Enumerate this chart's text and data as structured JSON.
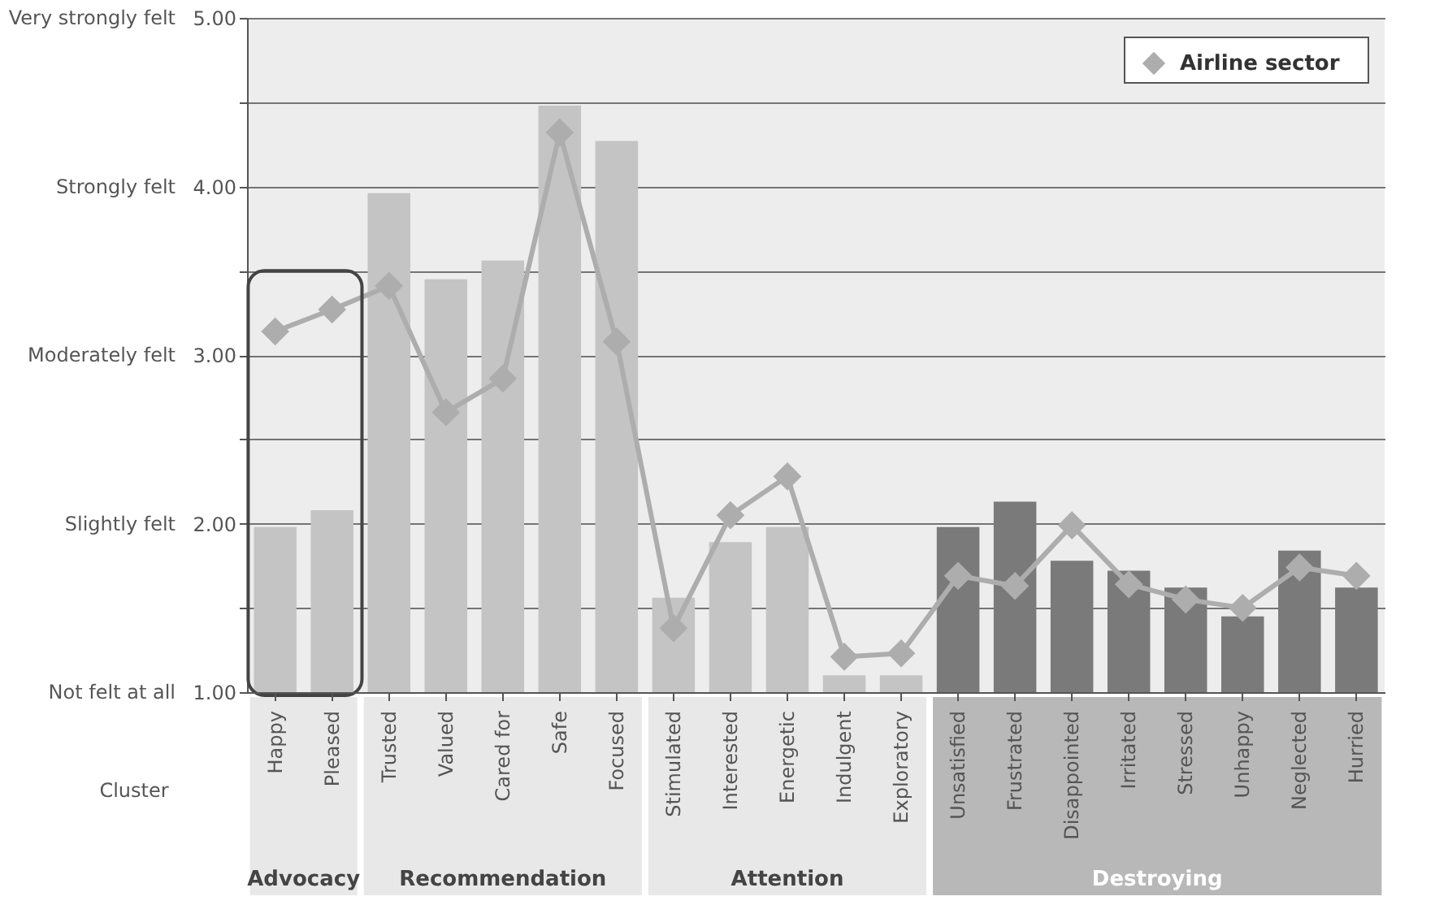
{
  "chart_data": {
    "type": "bar",
    "xlabel": "Cluster",
    "categories": [
      "Happy",
      "Pleased",
      "Trusted",
      "Valued",
      "Cared for",
      "Safe",
      "Focused",
      "Stimulated",
      "Interested",
      "Energetic",
      "Indulgent",
      "Exploratory",
      "Unsatisfied",
      "Frustrated",
      "Disappointed",
      "Irritated",
      "Stressed",
      "Unhappy",
      "Neglected",
      "Hurried"
    ],
    "series": [
      {
        "type": "bar",
        "color": "#c4c4c4",
        "colors": [
          "#c4c4c4",
          "#c4c4c4",
          "#c4c4c4",
          "#c4c4c4",
          "#c4c4c4",
          "#c4c4c4",
          "#c4c4c4",
          "#c4c4c4",
          "#c4c4c4",
          "#c4c4c4",
          "#c4c4c4",
          "#c4c4c4",
          "#7a7a7a",
          "#7a7a7a",
          "#7a7a7a",
          "#7a7a7a",
          "#7a7a7a",
          "#7a7a7a",
          "#7a7a7a",
          "#7a7a7a"
        ],
        "values": [
          1.98,
          2.08,
          3.96,
          3.45,
          3.56,
          4.48,
          4.27,
          1.56,
          1.89,
          1.98,
          1.1,
          1.1,
          1.98,
          2.13,
          1.78,
          1.72,
          1.62,
          1.45,
          1.84,
          1.62
        ]
      },
      {
        "type": "line",
        "name": "Airline sector",
        "color": "#adadad",
        "values": [
          3.14,
          3.27,
          3.41,
          2.66,
          2.86,
          4.32,
          3.08,
          1.38,
          2.05,
          2.28,
          1.21,
          1.23,
          1.69,
          1.63,
          1.99,
          1.64,
          1.55,
          1.5,
          1.74,
          1.69
        ]
      }
    ],
    "ylim": [
      1,
      5
    ],
    "yticks": [
      {
        "value": 1,
        "label": "1.00"
      },
      {
        "value": 1.5,
        "label": null
      },
      {
        "value": 2,
        "label": "2.00"
      },
      {
        "value": 2.5,
        "label": null
      },
      {
        "value": 3,
        "label": "3.00"
      },
      {
        "value": 3.5,
        "label": null
      },
      {
        "value": 4,
        "label": "4.00"
      },
      {
        "value": 4.5,
        "label": null
      },
      {
        "value": 5,
        "label": "5.00"
      }
    ],
    "grid": "y",
    "legend": "top right",
    "marker": "diamond",
    "line_style": "solid",
    "annotations": [
      "Advocacy",
      "Recommendation",
      "Attention",
      "Destroying",
      "Not felt at all",
      "Slightly felt",
      "Moderately felt",
      "Strongly felt",
      "Very strongly felt"
    ]
  }
}
